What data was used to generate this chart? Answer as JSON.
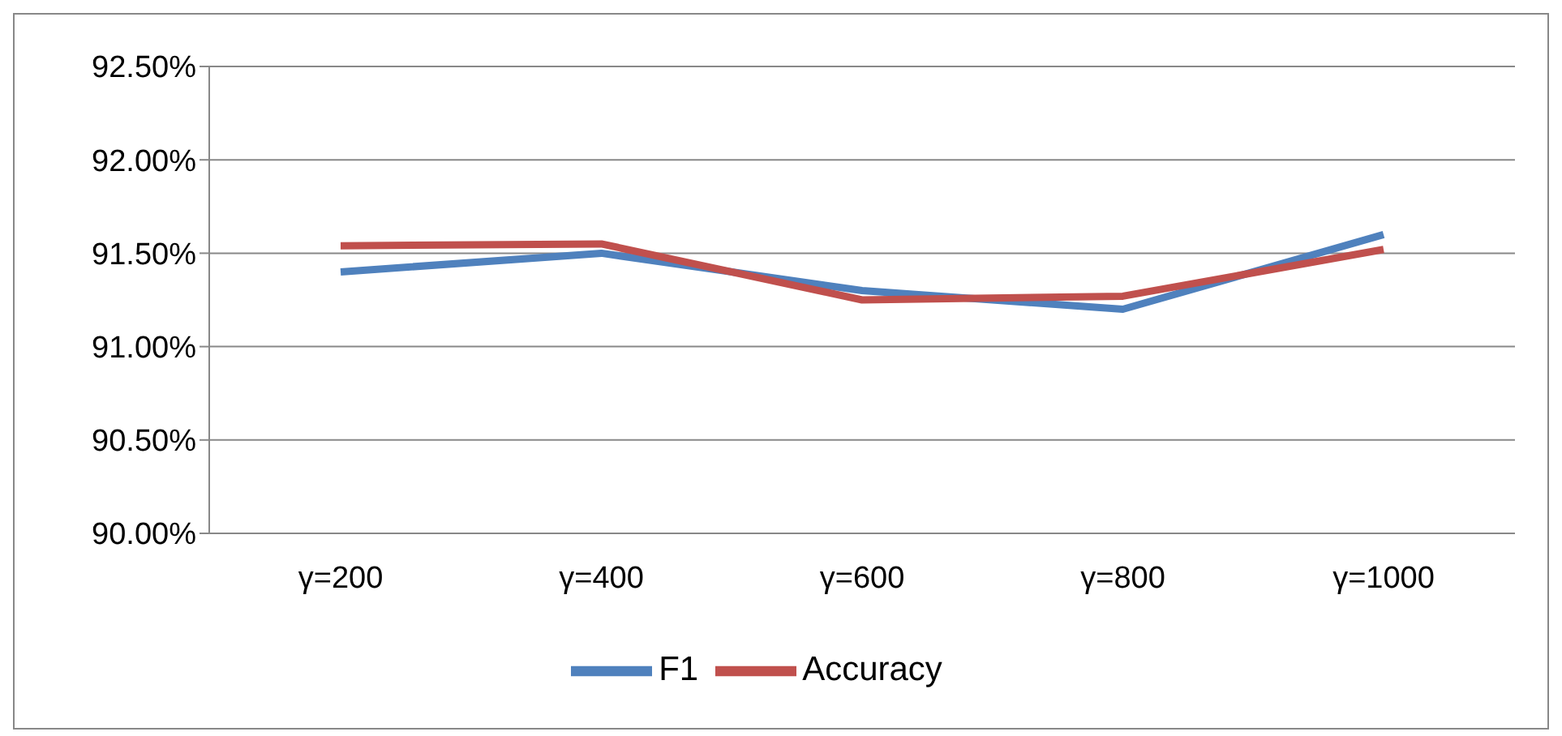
{
  "chart_data": {
    "type": "line",
    "categories": [
      "γ=200",
      "γ=400",
      "γ=600",
      "γ=800",
      "γ=1000"
    ],
    "series": [
      {
        "name": "F1",
        "color": "#4f81bd",
        "values": [
          91.4,
          91.5,
          91.3,
          91.2,
          91.6
        ]
      },
      {
        "name": "Accuracy",
        "color": "#c0504d",
        "values": [
          91.54,
          91.55,
          91.25,
          91.27,
          91.52
        ]
      }
    ],
    "ylim": [
      90,
      92.5
    ],
    "yticks": [
      {
        "value": 90,
        "label": "90.00%"
      },
      {
        "value": 90.5,
        "label": "90.50%"
      },
      {
        "value": 91,
        "label": "91.00%"
      },
      {
        "value": 91.5,
        "label": "91.50%"
      },
      {
        "value": 92,
        "label": "92.00%"
      },
      {
        "value": 92.5,
        "label": "92.50%"
      }
    ],
    "grid": "y",
    "legend": "bottom",
    "marker": "none",
    "line_style": "solid"
  }
}
